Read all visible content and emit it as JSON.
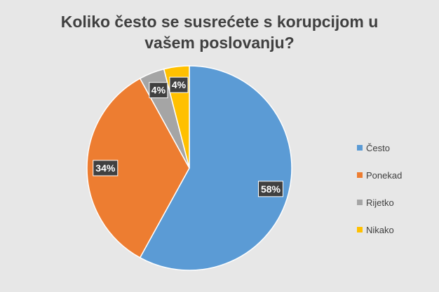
{
  "chart_data": {
    "type": "pie",
    "title_lines": [
      "Koliko često se susrećete s korupcijom u",
      "vašem poslovanju?"
    ],
    "categories": [
      "Često",
      "Ponekad",
      "Rijetko",
      "Nikako"
    ],
    "values": [
      58,
      34,
      4,
      4
    ],
    "value_labels": [
      "58%",
      "34%",
      "4%",
      "4%"
    ],
    "colors": [
      "#5b9bd5",
      "#ed7d31",
      "#a5a5a5",
      "#ffc000"
    ],
    "legend_position": "right",
    "grid": false
  }
}
